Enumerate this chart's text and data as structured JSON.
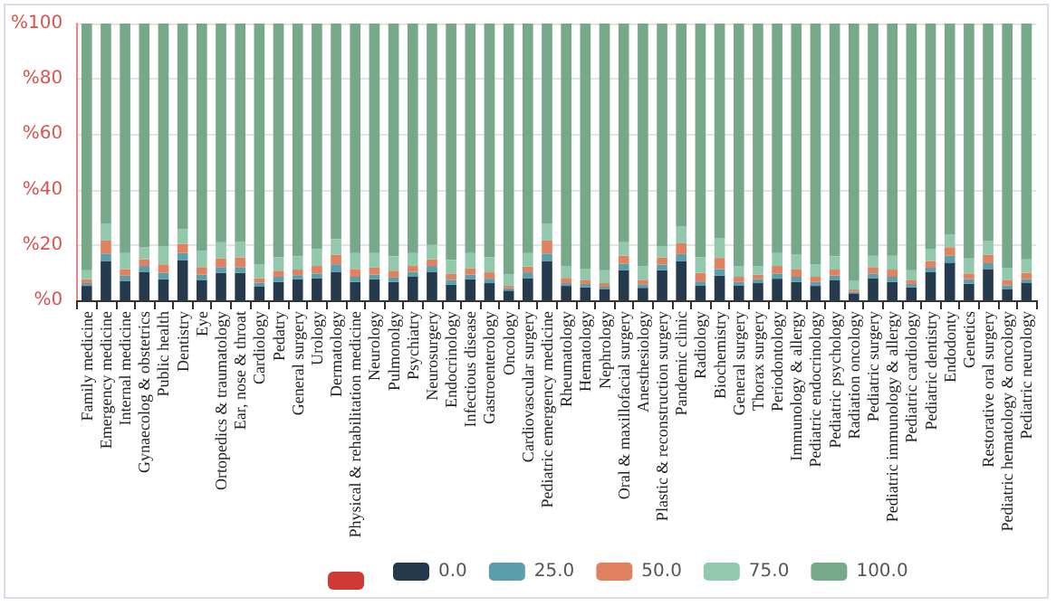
{
  "chart_data": {
    "type": "bar",
    "stacked": true,
    "grid": "y",
    "legend": "bottom",
    "categories": [
      "Family medicine",
      "Emergency medicine",
      "Internal medicine",
      "Gynaecolog & obstetrics",
      "Public health",
      "Dentistry",
      "Eye",
      "Ortopedics & traumatology",
      "Ear, nose & throat",
      "Cardiology",
      "Pedatry",
      "General surgery",
      "Urology",
      "Dermatology",
      "Physical & rehabilitation medicine",
      "Neurology",
      "Pulmonolgy",
      "Psychiatry",
      "Neurosurgery",
      "Endocrinology",
      "Infectious disease",
      "Gastroenterology",
      "Oncology",
      "Cardiovascular surgery",
      "Pediatric emergency medicine",
      "Rheumatology",
      "Hematology",
      "Nephrology",
      "Oral & maxillofacial surgery",
      "Anesthesiology",
      "Plastic & reconstruction surgery",
      "Pandemic clinic",
      "Radiology",
      "Biochemistry",
      "General surgery",
      "Thorax surgery",
      "Periodontology",
      "Immunology & allergy",
      "Pediatric endocrinology",
      "Pediatric psychology",
      "Radiation oncology",
      "Pediatric surgery",
      "Pediatric immunology & allergy",
      "Pediatric cardiology",
      "Pediatric dentistry",
      "Endodonty",
      "Genetics",
      "Restorative oral surgery",
      "Pediatric hematology & oncology",
      "Pediatric neurology"
    ],
    "ylim": [
      0,
      100
    ],
    "yticks": [
      {
        "value": 0,
        "label": "%0"
      },
      {
        "value": 20,
        "label": "%20"
      },
      {
        "value": 40,
        "label": "%40"
      },
      {
        "value": 60,
        "label": "%60"
      },
      {
        "value": 80,
        "label": "%80"
      },
      {
        "value": 100,
        "label": "%100"
      }
    ],
    "series": [
      {
        "name": "0.0",
        "color": "#253b4d",
        "values": [
          5.2,
          14.2,
          7.0,
          10.3,
          7.6,
          14.4,
          7.2,
          9.9,
          9.9,
          4.9,
          6.6,
          7.6,
          8.0,
          10.3,
          6.6,
          7.6,
          6.6,
          8.5,
          10.3,
          5.6,
          7.6,
          6.2,
          3.5,
          8.0,
          14.2,
          5.2,
          4.7,
          4.1,
          10.9,
          4.5,
          10.9,
          14.2,
          5.4,
          8.9,
          5.4,
          6.2,
          7.8,
          6.6,
          5.2,
          7.2,
          2.5,
          8.0,
          6.6,
          4.7,
          10.1,
          13.6,
          6.0,
          11.3,
          4.1,
          6.4
        ]
      },
      {
        "name": "25.0",
        "color": "#5a9fab",
        "values": [
          1.0,
          2.7,
          1.9,
          2.1,
          2.3,
          2.7,
          2.1,
          2.1,
          2.1,
          1.5,
          1.9,
          1.5,
          1.7,
          2.7,
          1.9,
          1.7,
          1.6,
          1.8,
          2.1,
          1.8,
          1.7,
          1.6,
          0.8,
          2.1,
          2.7,
          1.0,
          1.2,
          0.8,
          2.3,
          1.3,
          2.0,
          2.5,
          1.4,
          2.4,
          1.2,
          1.4,
          1.9,
          1.9,
          1.4,
          1.7,
          0.6,
          1.7,
          1.9,
          1.2,
          1.7,
          2.5,
          1.6,
          2.1,
          1.3,
          1.2
        ]
      },
      {
        "name": "50.0",
        "color": "#e0825f",
        "values": [
          1.4,
          4.7,
          2.4,
          2.4,
          3.1,
          3.3,
          2.7,
          3.1,
          3.5,
          1.6,
          2.2,
          2.0,
          2.7,
          3.5,
          2.8,
          2.5,
          2.5,
          2.1,
          2.4,
          2.1,
          2.2,
          2.3,
          0.9,
          2.1,
          4.7,
          1.9,
          1.5,
          1.3,
          2.9,
          1.6,
          2.6,
          3.9,
          3.1,
          4.0,
          1.9,
          1.7,
          2.7,
          2.8,
          1.9,
          2.2,
          0.8,
          2.3,
          2.6,
          1.5,
          2.4,
          3.1,
          2.1,
          3.1,
          1.8,
          2.3
        ]
      },
      {
        "name": "75.0",
        "color": "#92c9ad",
        "values": [
          3.3,
          6.2,
          5.8,
          4.4,
          6.6,
          5.4,
          5.9,
          5.9,
          5.7,
          5.0,
          4.8,
          4.8,
          6.2,
          5.6,
          5.8,
          5.3,
          5.2,
          4.7,
          5.2,
          5.1,
          5.6,
          5.4,
          4.1,
          4.9,
          6.2,
          4.3,
          3.9,
          4.7,
          4.9,
          5.0,
          4.1,
          6.2,
          5.6,
          7.2,
          3.9,
          3.1,
          4.7,
          5.2,
          4.5,
          4.8,
          3.3,
          4.1,
          5.0,
          3.5,
          4.4,
          4.5,
          5.4,
          5.1,
          4.6,
          4.9
        ]
      },
      {
        "name": "100.0",
        "color": "#77a88a",
        "values": [
          89.1,
          72.2,
          82.9,
          80.8,
          80.4,
          74.2,
          82.1,
          79.0,
          78.8,
          87.0,
          84.5,
          84.1,
          81.4,
          77.9,
          82.9,
          82.9,
          84.1,
          82.9,
          80.0,
          85.4,
          82.9,
          84.5,
          90.7,
          82.9,
          72.2,
          87.6,
          88.7,
          89.1,
          79.0,
          87.6,
          80.4,
          73.2,
          84.5,
          77.5,
          87.6,
          87.6,
          82.9,
          83.5,
          87.0,
          84.1,
          92.8,
          83.9,
          83.9,
          89.1,
          81.4,
          76.3,
          84.9,
          78.4,
          88.2,
          85.2
        ]
      }
    ]
  }
}
